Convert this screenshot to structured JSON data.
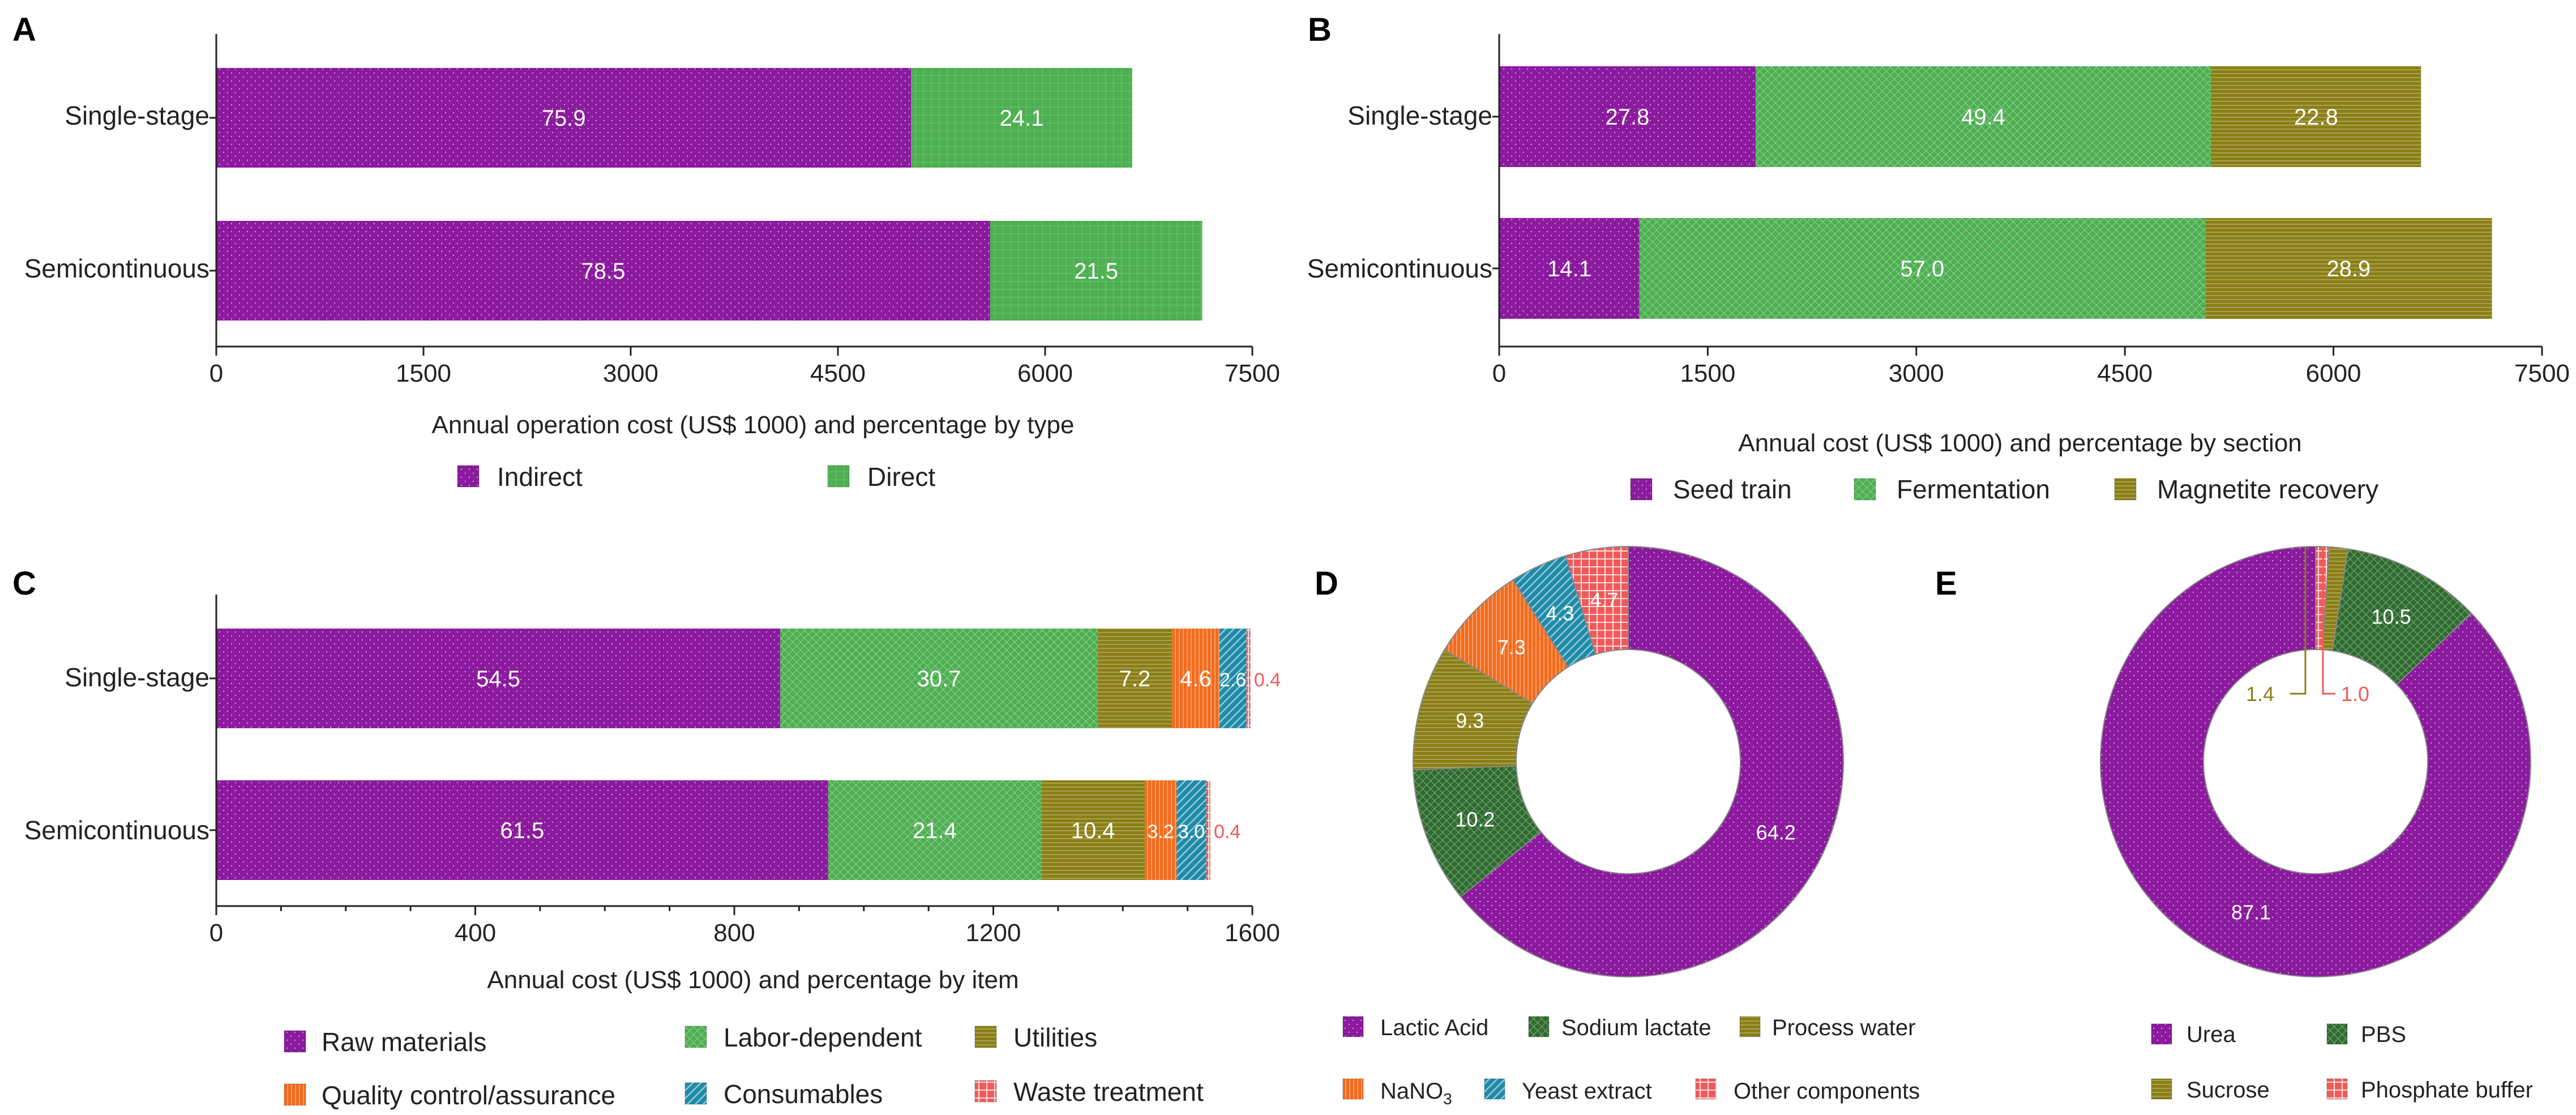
{
  "colors": {
    "purple": "#8B1A9E",
    "green": "#4CAF50",
    "olive": "#8A7F16",
    "orange": "#F26B1D",
    "teal": "#1E8BA8",
    "red": "#F05A5A",
    "darkgreen": "#2E6B2E"
  },
  "chart_data": [
    {
      "id": "A",
      "type": "bar",
      "orientation": "horizontal",
      "stacked": true,
      "panel_label": "A",
      "categories": [
        "Single-stage",
        "Semicontinuous"
      ],
      "series": [
        {
          "name": "Indirect",
          "values": [
            5030,
            5602
          ],
          "labels": [
            "75.9",
            "78.5"
          ],
          "color": "purple",
          "pattern": "dots"
        },
        {
          "name": "Direct",
          "values": [
            1600,
            1535
          ],
          "labels": [
            "24.1",
            "21.5"
          ],
          "color": "green",
          "pattern": "grid"
        }
      ],
      "xlim": [
        0,
        7500
      ],
      "xticks": [
        "0",
        "1500",
        "3000",
        "4500",
        "6000",
        "7500"
      ],
      "xlabel": "Annual operation cost (US$ 1000) and percentage by type",
      "legend": [
        "Indirect",
        "Direct"
      ]
    },
    {
      "id": "B",
      "type": "bar",
      "orientation": "horizontal",
      "stacked": true,
      "panel_label": "B",
      "categories": [
        "Single-stage",
        "Semicontinuous"
      ],
      "series": [
        {
          "name": "Seed train",
          "values": [
            1844,
            1008
          ],
          "labels": [
            "27.8",
            "14.1"
          ],
          "color": "purple",
          "pattern": "dots"
        },
        {
          "name": "Fermentation",
          "values": [
            3276,
            4070
          ],
          "labels": [
            "49.4",
            "57.0"
          ],
          "color": "green",
          "pattern": "cross"
        },
        {
          "name": "Magnetite recovery",
          "values": [
            1510,
            2062
          ],
          "labels": [
            "22.8",
            "28.9"
          ],
          "color": "olive",
          "pattern": "hlines"
        }
      ],
      "xlim": [
        0,
        7500
      ],
      "xticks": [
        "0",
        "1500",
        "3000",
        "4500",
        "6000",
        "7500"
      ],
      "xlabel": "Annual cost (US$ 1000) and percentage by section",
      "legend": [
        "Seed train",
        "Fermentation",
        "Magnetite recovery"
      ]
    },
    {
      "id": "C",
      "type": "bar",
      "orientation": "horizontal",
      "stacked": true,
      "panel_label": "C",
      "categories": [
        "Single-stage",
        "Semicontinuous"
      ],
      "series": [
        {
          "name": "Raw materials",
          "values": [
            871,
            945
          ],
          "labels": [
            "54.5",
            "61.5"
          ],
          "color": "purple",
          "pattern": "dots"
        },
        {
          "name": "Labor-dependent",
          "values": [
            490,
            329
          ],
          "labels": [
            "30.7",
            "21.4"
          ],
          "color": "green",
          "pattern": "cross"
        },
        {
          "name": "Utilities",
          "values": [
            115,
            160
          ],
          "labels": [
            "7.2",
            "10.4"
          ],
          "color": "olive",
          "pattern": "hlines"
        },
        {
          "name": "Quality control/assurance",
          "values": [
            73,
            49
          ],
          "labels": [
            "4.6",
            "3.2"
          ],
          "color": "orange",
          "pattern": "vlines"
        },
        {
          "name": "Consumables",
          "values": [
            42,
            46
          ],
          "labels": [
            "2.6",
            "3.0"
          ],
          "color": "teal",
          "pattern": "diag"
        },
        {
          "name": "Waste treatment",
          "values": [
            6,
            6
          ],
          "labels": [
            "0.4",
            "0.4"
          ],
          "color": "red",
          "pattern": "check"
        }
      ],
      "xlim": [
        0,
        1600
      ],
      "xticks": [
        "0",
        "400",
        "800",
        "1200",
        "1600"
      ],
      "xlabel": "Annual cost (US$ 1000) and percentage by item",
      "legend": [
        "Raw materials",
        "Labor-dependent",
        "Utilities",
        "Quality control/assurance",
        "Consumables",
        "Waste treatment"
      ]
    },
    {
      "id": "D",
      "type": "pie",
      "donut": true,
      "panel_label": "D",
      "slices": [
        {
          "name": "Lactic Acid",
          "value": 64.2,
          "color": "purple",
          "pattern": "dots"
        },
        {
          "name": "Sodium lactate",
          "value": 10.2,
          "color": "darkgreen",
          "pattern": "cross"
        },
        {
          "name": "Process water",
          "value": 9.3,
          "color": "olive",
          "pattern": "hlines"
        },
        {
          "name": "NaNO3",
          "value": 7.3,
          "color": "orange",
          "pattern": "vlines"
        },
        {
          "name": "Yeast extract",
          "value": 4.3,
          "color": "teal",
          "pattern": "diag"
        },
        {
          "name": "Other components",
          "value": 4.7,
          "color": "red",
          "pattern": "check"
        }
      ],
      "labels": [
        "64.2",
        "10.2",
        "9.3",
        "7.3",
        "4.3",
        "4.7"
      ],
      "legend": [
        "Lactic Acid",
        "Sodium lactate",
        "Process water",
        "NaNO",
        "Yeast extract",
        "Other components"
      ],
      "legend_subscript": "3"
    },
    {
      "id": "E",
      "type": "pie",
      "donut": true,
      "panel_label": "E",
      "slices": [
        {
          "name": "Urea",
          "value": 87.1,
          "color": "purple",
          "pattern": "dots"
        },
        {
          "name": "PBS",
          "value": 10.5,
          "color": "darkgreen",
          "pattern": "cross"
        },
        {
          "name": "Sucrose",
          "value": 1.4,
          "color": "olive",
          "pattern": "hlines"
        },
        {
          "name": "Phosphate buffer",
          "value": 1.0,
          "color": "red",
          "pattern": "check"
        }
      ],
      "labels": [
        "87.1",
        "10.5",
        "1.4",
        "1.0"
      ],
      "legend": [
        "Urea",
        "PBS",
        "Sucrose",
        "Phosphate buffer"
      ]
    }
  ]
}
